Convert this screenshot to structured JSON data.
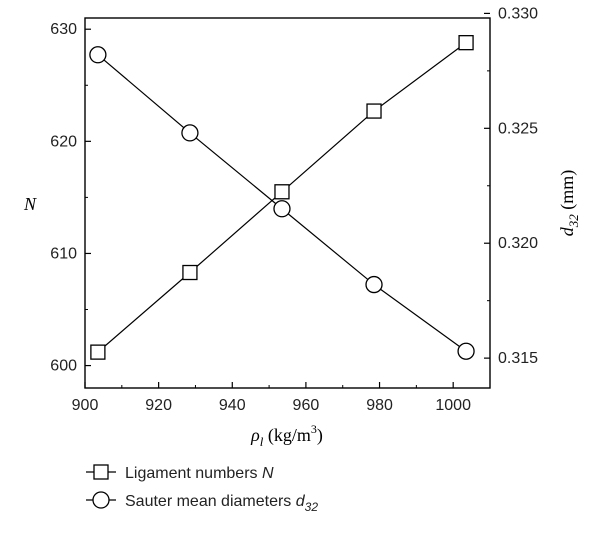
{
  "chart_data": {
    "type": "line",
    "x": [
      903.5,
      928.5,
      953.5,
      978.5,
      1003.5
    ],
    "xlim": [
      900,
      1010
    ],
    "x_ticks": [
      "900",
      "920",
      "940",
      "960",
      "980",
      "1000"
    ],
    "xlabel": {
      "symbol": "ρ",
      "sub": "l",
      "unit_prefix": " (kg/m",
      "unit_sup": "3",
      "unit_suffix": ")"
    },
    "y_left": {
      "label": "N",
      "lim": [
        598,
        631
      ],
      "ticks": [
        "600",
        "610",
        "620",
        "630"
      ]
    },
    "y_right": {
      "label": {
        "symbol": "d",
        "sub": "32",
        "unit": " (mm)"
      },
      "lim": [
        0.3137,
        0.3298
      ],
      "ticks": [
        "0.315",
        "0.320",
        "0.325",
        "0.330"
      ]
    },
    "series": [
      {
        "name": "Ligament numbers",
        "name_symbol": "N",
        "marker": "square",
        "axis": "left",
        "values": [
          601.2,
          608.3,
          615.5,
          622.7,
          628.8
        ]
      },
      {
        "name": "Sauter mean diameters",
        "name_symbol": "d",
        "name_sub": "32",
        "marker": "circle",
        "axis": "right",
        "values": [
          0.3282,
          0.3248,
          0.3215,
          0.3182,
          0.3153
        ]
      }
    ],
    "grid": false,
    "legend": "bottom-left"
  }
}
